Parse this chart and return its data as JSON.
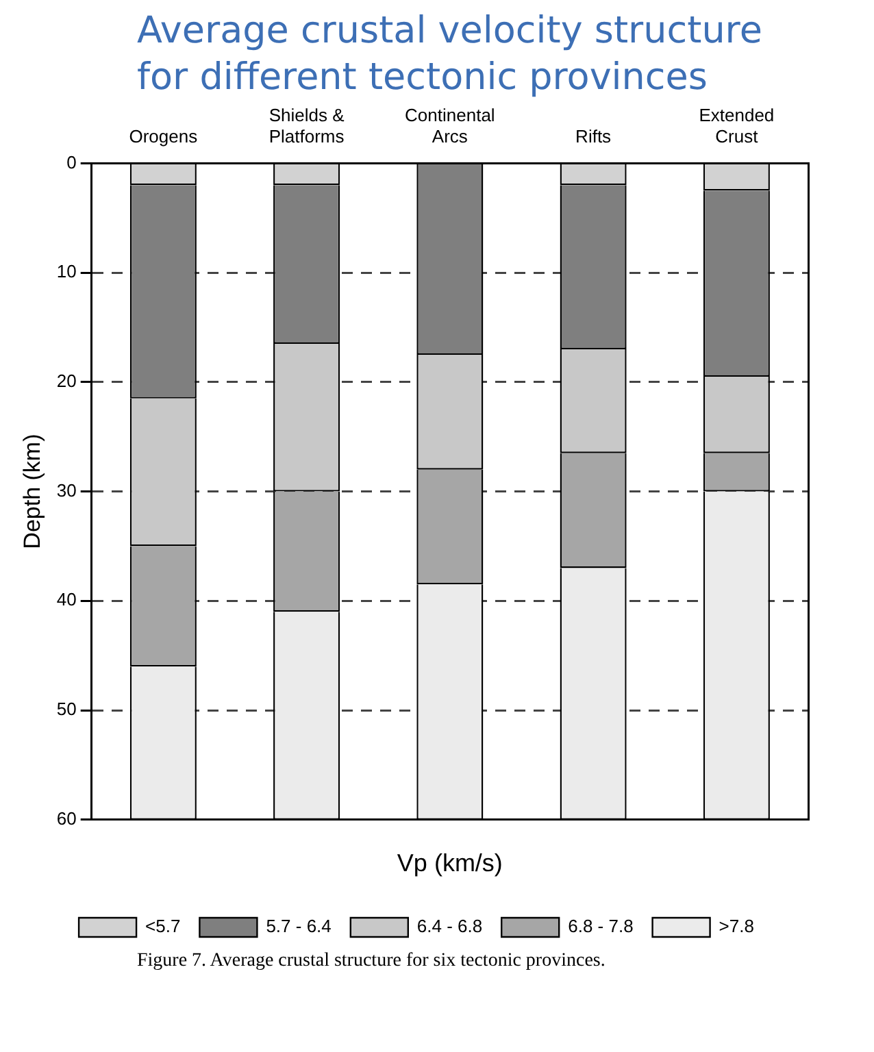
{
  "chart_data": {
    "type": "bar",
    "title": "Average crustal velocity structure for different tectonic provinces",
    "xlabel": "Vp (km/s)",
    "ylabel": "Depth (km)",
    "categories": [
      "Orogens",
      "Shields & Platforms",
      "Continental Arcs",
      "Rifts",
      "Extended Crust"
    ],
    "stacked": true,
    "series": [
      {
        "name": "<5.7",
        "color": "#d2d2d2",
        "values": [
          2,
          2,
          0,
          2,
          2.5
        ]
      },
      {
        "name": "5.7 - 6.4",
        "color": "#7f7f7f",
        "values": [
          19.5,
          14.5,
          17.5,
          15,
          17
        ]
      },
      {
        "name": "6.4 - 6.8",
        "color": "#c8c8c8",
        "values": [
          13.5,
          13.5,
          10.5,
          9.5,
          7
        ]
      },
      {
        "name": "6.8 - 7.8",
        "color": "#a6a6a6",
        "values": [
          11,
          11,
          10.5,
          10.5,
          3.5
        ]
      },
      {
        "name": ">7.8",
        "color": "#ebebeb",
        "values": [
          14,
          19,
          21.5,
          23,
          30
        ]
      }
    ],
    "ylim": [
      60,
      0
    ],
    "yticks": [
      0,
      10,
      20,
      30,
      40,
      50,
      60
    ],
    "grid": "y",
    "legend": "bottom",
    "annotations": [
      "Figure 7. Average crustal structure for six tectonic provinces."
    ]
  }
}
